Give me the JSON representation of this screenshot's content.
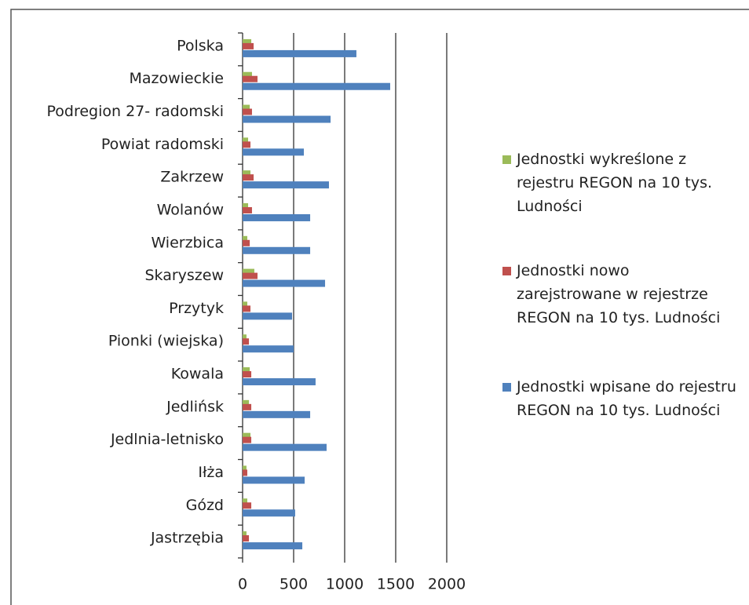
{
  "chart_data": {
    "type": "hbar",
    "categories": [
      "Polska",
      "Mazowieckie",
      "Podregion 27- radomski",
      "Powiat radomski",
      "Zakrzew",
      "Wolanów",
      "Wierzbica",
      "Skaryszew",
      "Przytyk",
      "Pionki (wiejska)",
      "Kowala",
      "Jedlińsk",
      "Jedlnia-letnisko",
      "Iłża",
      "Gózd",
      "Jastrzębia"
    ],
    "series": [
      {
        "name": "Jednostki wykreślone z rejestru REGON na 10 tys. Ludności",
        "color": "#9bbb59",
        "values": [
          85,
          92,
          70,
          54,
          77,
          54,
          46,
          115,
          46,
          38,
          70,
          62,
          77,
          38,
          46,
          38
        ]
      },
      {
        "name": "Jednostki nowo zarejstrowane w rejestrze REGON na 10 tys. Ludności",
        "color": "#c0504d",
        "values": [
          108,
          146,
          92,
          77,
          108,
          92,
          70,
          146,
          77,
          62,
          85,
          85,
          85,
          46,
          85,
          62
        ]
      },
      {
        "name": "Jednostki wpisane do rejestru REGON na 10 tys. Ludności",
        "color": "#4f81bd",
        "values": [
          1115,
          1446,
          862,
          600,
          846,
          662,
          662,
          808,
          485,
          500,
          715,
          662,
          823,
          608,
          515,
          585
        ]
      }
    ],
    "xlim": [
      0,
      2000
    ],
    "xticks": [
      0,
      500,
      1000,
      1500,
      2000
    ],
    "grid": true,
    "legend": "right"
  }
}
